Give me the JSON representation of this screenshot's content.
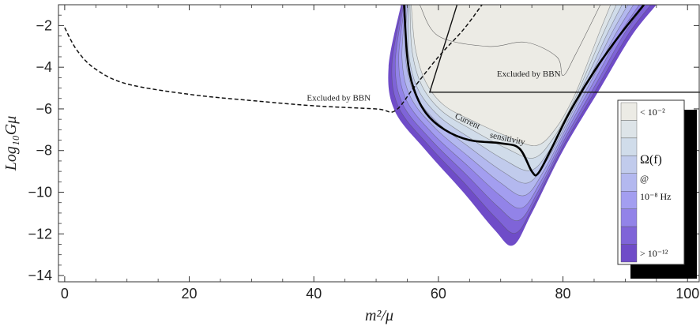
{
  "chart_data": {
    "type": "contour",
    "xlabel": "m²/μ",
    "ylabel": "Log₁₀Gμ",
    "xlim": [
      -1,
      102
    ],
    "ylim": [
      -14.3,
      -1.0
    ],
    "xticks": [
      0,
      20,
      40,
      60,
      80,
      100
    ],
    "yticks": [
      -2,
      -4,
      -6,
      -8,
      -10,
      -12,
      -14
    ],
    "xtick_labels": [
      "0",
      "20",
      "40",
      "60",
      "80",
      "100"
    ],
    "ytick_labels": [
      "−2",
      "−4",
      "−6",
      "−8",
      "−10",
      "−12",
      "−14"
    ],
    "contour_levels": 9,
    "contour_colors": [
      "#ecebe5",
      "#dde4e8",
      "#d0dcea",
      "#c1cbec",
      "#b3b8ef",
      "#a39ef0",
      "#9283e8",
      "#7f64d8",
      "#6f4cc8"
    ],
    "colorbar": {
      "top": "< 10⁻²",
      "middle_line1": "Ω(f)",
      "middle_line2": "@",
      "middle_line3": "10⁻⁸ Hz",
      "bottom": "> 10⁻¹²"
    },
    "curves": {
      "bbn_dashed": [
        [
          0,
          -2.1
        ],
        [
          2,
          -3.2
        ],
        [
          5,
          -4.1
        ],
        [
          10,
          -4.8
        ],
        [
          20,
          -5.3
        ],
        [
          30,
          -5.6
        ],
        [
          40,
          -5.85
        ],
        [
          50,
          -6.0
        ],
        [
          53,
          -6.1
        ],
        [
          56,
          -5.0
        ],
        [
          60,
          -3.5
        ],
        [
          64,
          -2.2
        ],
        [
          67,
          -1.0
        ]
      ],
      "current_sensitivity": [
        [
          54.5,
          -1.0
        ],
        [
          55,
          -3.5
        ],
        [
          56,
          -5.0
        ],
        [
          58,
          -6.2
        ],
        [
          61,
          -7.0
        ],
        [
          65,
          -7.5
        ],
        [
          70,
          -7.65
        ],
        [
          73,
          -7.9
        ],
        [
          75,
          -9.0
        ],
        [
          76,
          -9.1
        ],
        [
          78,
          -8.0
        ],
        [
          81,
          -6.2
        ],
        [
          85,
          -4.2
        ],
        [
          89,
          -2.5
        ],
        [
          93,
          -1.0
        ]
      ],
      "contour_outer": [
        [
          54,
          -1.0
        ],
        [
          52,
          -4.0
        ],
        [
          53,
          -6.1
        ],
        [
          58,
          -8.0
        ],
        [
          64,
          -10.0
        ],
        [
          69,
          -11.8
        ],
        [
          72,
          -12.55
        ],
        [
          75,
          -11.0
        ],
        [
          80,
          -8.0
        ],
        [
          86,
          -5.0
        ],
        [
          91,
          -2.5
        ],
        [
          95,
          -1.0
        ]
      ],
      "bbn_box_top": [
        [
          58.5,
          -1.0
        ],
        [
          62,
          -1.0
        ]
      ],
      "bbn_box_left": [
        [
          58.5,
          -5.2
        ],
        [
          58.5,
          -5.2
        ]
      ],
      "bbn_box_horizontal": [
        [
          58.5,
          -5.2
        ],
        [
          102,
          -5.2
        ]
      ],
      "bbn_box_slant": [
        [
          58.6,
          -5.2
        ],
        [
          63,
          -1.0
        ]
      ]
    },
    "annotations": [
      {
        "text": "Excluded by BBN",
        "x": 44,
        "y": -5.6
      },
      {
        "text": "Excluded by BBN",
        "x": 74.5,
        "y": -4.45
      },
      {
        "text": "Current",
        "x": 64.5,
        "y": -6.7
      },
      {
        "text": "sensitivity",
        "x": 71,
        "y": -7.55
      }
    ]
  }
}
